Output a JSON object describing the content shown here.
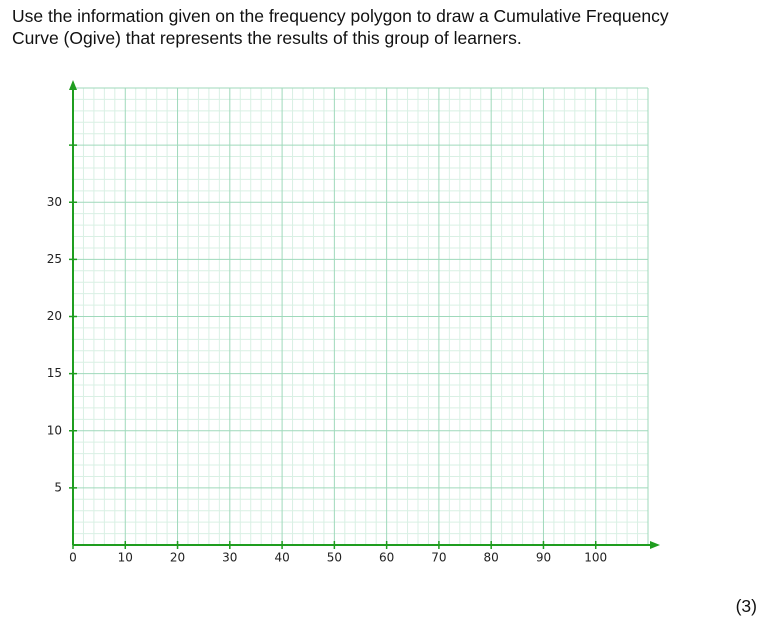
{
  "question": {
    "lines": [
      "Use the information given on the frequency polygon to draw a Cumulative Frequency",
      "Curve (Ogive) that represents the results of this group of learners."
    ],
    "marks": "(3)"
  },
  "chart_data": {
    "type": "line",
    "series": [],
    "xlim": [
      0,
      110
    ],
    "ylim": [
      0,
      40
    ],
    "xticks": [
      0,
      10,
      20,
      30,
      40,
      50,
      60,
      70,
      80,
      90,
      100
    ],
    "yticks": [
      5,
      10,
      15,
      20,
      25,
      30,
      {
        "value": 35,
        "label": null
      }
    ],
    "grid": true,
    "major_grid": {
      "x": 10,
      "y": 5
    },
    "minor_grid": {
      "x": 2,
      "y": 1
    },
    "grid_color": "#9fd9bb",
    "minor_grid_color": "#d9f0e4",
    "axis_color": "#1f9d1f"
  }
}
